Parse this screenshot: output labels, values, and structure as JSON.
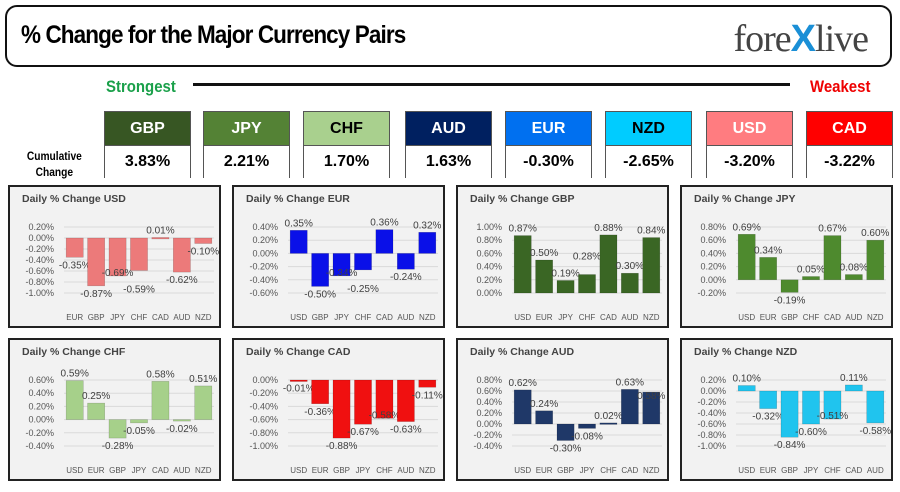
{
  "header": {
    "title": "% Change for the Major Currency Pairs",
    "logo_text": "forexlive"
  },
  "scale": {
    "strongest": "Strongest",
    "weakest": "Weakest",
    "cumulative_label_1": "Cumulative",
    "cumulative_label_2": "Change"
  },
  "cumulative": [
    {
      "ccy": "GBP",
      "value": "3.83%",
      "color": "#375623",
      "text": "#fff"
    },
    {
      "ccy": "JPY",
      "value": "2.21%",
      "color": "#548235",
      "text": "#fff"
    },
    {
      "ccy": "CHF",
      "value": "1.70%",
      "color": "#a9d08e",
      "text": "#000"
    },
    {
      "ccy": "AUD",
      "value": "1.63%",
      "color": "#002060",
      "text": "#fff"
    },
    {
      "ccy": "EUR",
      "value": "-0.30%",
      "color": "#0070f0",
      "text": "#fff"
    },
    {
      "ccy": "NZD",
      "value": "-2.65%",
      "color": "#00ccff",
      "text": "#000"
    },
    {
      "ccy": "USD",
      "value": "-3.20%",
      "color": "#ff7c80",
      "text": "#fff"
    },
    {
      "ccy": "CAD",
      "value": "-3.22%",
      "color": "#ff0000",
      "text": "#fff"
    }
  ],
  "chart_data": [
    {
      "type": "bar",
      "title": "Daily % Change USD",
      "categories": [
        "EUR",
        "GBP",
        "JPY",
        "CHF",
        "CAD",
        "AUD",
        "NZD"
      ],
      "values": [
        -0.35,
        -0.87,
        -0.69,
        -0.59,
        0.01,
        -0.62,
        -0.1
      ],
      "ylim": [
        -1.0,
        0.2
      ],
      "color": "#ec7a7a"
    },
    {
      "type": "bar",
      "title": "Daily % Change EUR",
      "categories": [
        "USD",
        "GBP",
        "JPY",
        "CHF",
        "CAD",
        "AUD",
        "NZD"
      ],
      "values": [
        0.35,
        -0.5,
        -0.34,
        -0.25,
        0.36,
        -0.24,
        0.32
      ],
      "ylim": [
        -0.6,
        0.4
      ],
      "color": "#0a10e8"
    },
    {
      "type": "bar",
      "title": "Daily % Change GBP",
      "categories": [
        "USD",
        "EUR",
        "JPY",
        "CHF",
        "CAD",
        "AUD",
        "NZD"
      ],
      "values": [
        0.87,
        0.5,
        0.19,
        0.28,
        0.88,
        0.3,
        0.84
      ],
      "ylim": [
        0,
        1.0
      ],
      "color": "#3a6624"
    },
    {
      "type": "bar",
      "title": "Daily % Change JPY",
      "categories": [
        "USD",
        "EUR",
        "GBP",
        "CHF",
        "CAD",
        "AUD",
        "NZD"
      ],
      "values": [
        0.69,
        0.34,
        -0.19,
        0.05,
        0.67,
        0.08,
        0.6
      ],
      "ylim": [
        -0.2,
        0.8
      ],
      "color": "#4e8a2e"
    },
    {
      "type": "bar",
      "title": "Daily % Change CHF",
      "categories": [
        "USD",
        "EUR",
        "GBP",
        "JPY",
        "CAD",
        "AUD",
        "NZD"
      ],
      "values": [
        0.59,
        0.25,
        -0.28,
        -0.05,
        0.58,
        -0.02,
        0.51
      ],
      "ylim": [
        -0.4,
        0.6
      ],
      "color": "#a6d08a"
    },
    {
      "type": "bar",
      "title": "Daily % Change CAD",
      "categories": [
        "USD",
        "EUR",
        "GBP",
        "JPY",
        "CHF",
        "AUD",
        "NZD"
      ],
      "values": [
        -0.01,
        -0.36,
        -0.88,
        -0.67,
        -0.58,
        -0.63,
        -0.11
      ],
      "ylim": [
        -1.0,
        0
      ],
      "color": "#f01010"
    },
    {
      "type": "bar",
      "title": "Daily % Change AUD",
      "categories": [
        "USD",
        "EUR",
        "GBP",
        "JPY",
        "CHF",
        "CAD",
        "NZD"
      ],
      "values": [
        0.62,
        0.24,
        -0.3,
        -0.08,
        0.02,
        0.63,
        0.58
      ],
      "ylim": [
        -0.4,
        0.8
      ],
      "color": "#1f3868"
    },
    {
      "type": "bar",
      "title": "Daily % Change NZD",
      "categories": [
        "USD",
        "EUR",
        "GBP",
        "JPY",
        "CHF",
        "CAD",
        "AUD"
      ],
      "values": [
        0.1,
        -0.32,
        -0.84,
        -0.6,
        -0.51,
        0.11,
        -0.58
      ],
      "ylim": [
        -1.0,
        0.2
      ],
      "color": "#20c4ee"
    }
  ]
}
